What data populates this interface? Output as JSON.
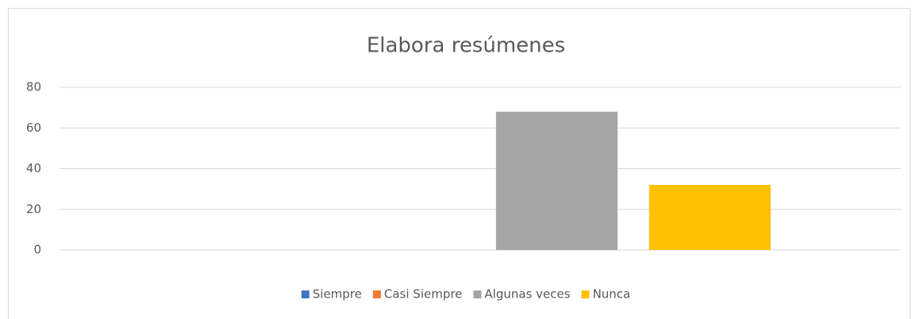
{
  "chart_data": {
    "type": "bar",
    "title": "Elabora resúmenes",
    "categories": [
      null
    ],
    "series": [
      {
        "name": "Siempre",
        "color": "#4472c4",
        "values": [
          0
        ]
      },
      {
        "name": "Casi Siempre",
        "color": "#ed7d31",
        "values": [
          0
        ]
      },
      {
        "name": "Algunas veces",
        "color": "#a5a5a5",
        "values": [
          68
        ]
      },
      {
        "name": "Nunca",
        "color": "#ffc000",
        "values": [
          32
        ]
      }
    ],
    "ylim": [
      0,
      80
    ],
    "yticks": [
      0,
      20,
      40,
      60,
      80
    ],
    "grid": true,
    "legend": "bottom"
  }
}
